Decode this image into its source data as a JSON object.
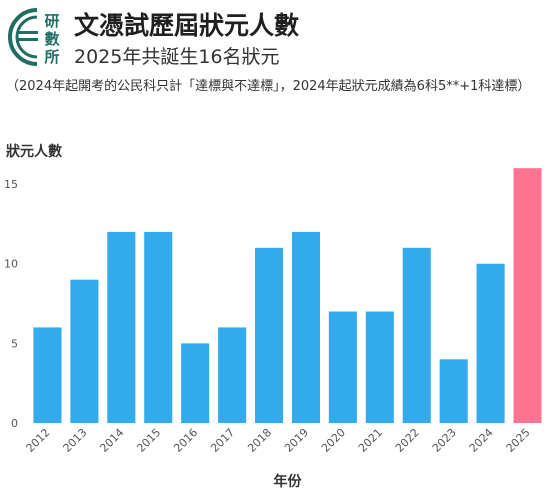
{
  "header": {
    "logo_text": [
      "研",
      "數",
      "所"
    ],
    "title": "文憑試歷屆狀元人數",
    "subtitle": "2025年共誕生16名狀元",
    "note": "（2024年起開考的公民科只計「達標與不達標」，2024年起狀元成績為6科5**+1科達標）"
  },
  "colors": {
    "bar": "#33aaeb",
    "highlight": "#ff7390",
    "logo": "#1f6e64"
  },
  "chart_data": {
    "type": "bar",
    "ylabel": "狀元人數",
    "xlabel": "年份",
    "categories": [
      "2012",
      "2013",
      "2014",
      "2015",
      "2016",
      "2017",
      "2018",
      "2019",
      "2020",
      "2021",
      "2022",
      "2023",
      "2024",
      "2025"
    ],
    "values": [
      6,
      9,
      12,
      12,
      5,
      6,
      11,
      12,
      7,
      7,
      11,
      4,
      10,
      16
    ],
    "highlight_category": "2025",
    "ylim": [
      0,
      16.2
    ],
    "yticks": [
      0,
      5,
      10,
      15
    ],
    "grid": false
  }
}
